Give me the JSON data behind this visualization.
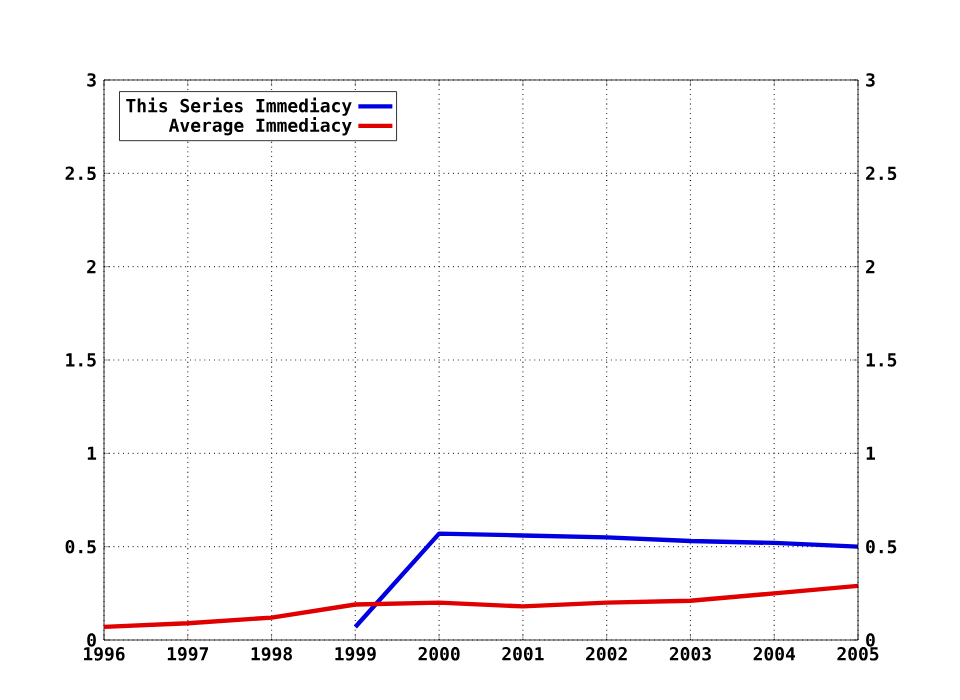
{
  "chart_data": {
    "type": "line",
    "series": [
      {
        "name": "This Series Immediacy",
        "color": "#0000e0",
        "x": [
          1999,
          2000,
          2001,
          2002,
          2003,
          2004,
          2005
        ],
        "values": [
          0.07,
          0.57,
          0.56,
          0.55,
          0.53,
          0.52,
          0.5
        ]
      },
      {
        "name": "Average Immediacy",
        "color": "#e00000",
        "x": [
          1996,
          1997,
          1998,
          1999,
          2000,
          2001,
          2002,
          2003,
          2004,
          2005
        ],
        "values": [
          0.07,
          0.09,
          0.12,
          0.19,
          0.2,
          0.18,
          0.2,
          0.21,
          0.25,
          0.29
        ]
      }
    ],
    "xlim": [
      1996,
      2005
    ],
    "xticks": [
      1996,
      1997,
      1998,
      1999,
      2000,
      2001,
      2002,
      2003,
      2004,
      2005
    ],
    "ylim": [
      0,
      3
    ],
    "yticks": [
      0,
      0.5,
      1,
      1.5,
      2,
      2.5,
      3
    ],
    "y2lim": [
      0,
      3
    ],
    "y2ticks": [
      0,
      0.5,
      1,
      1.5,
      2,
      2.5,
      3
    ],
    "grid": true,
    "legend": "top left",
    "marker": "none",
    "line_style": "solid"
  }
}
